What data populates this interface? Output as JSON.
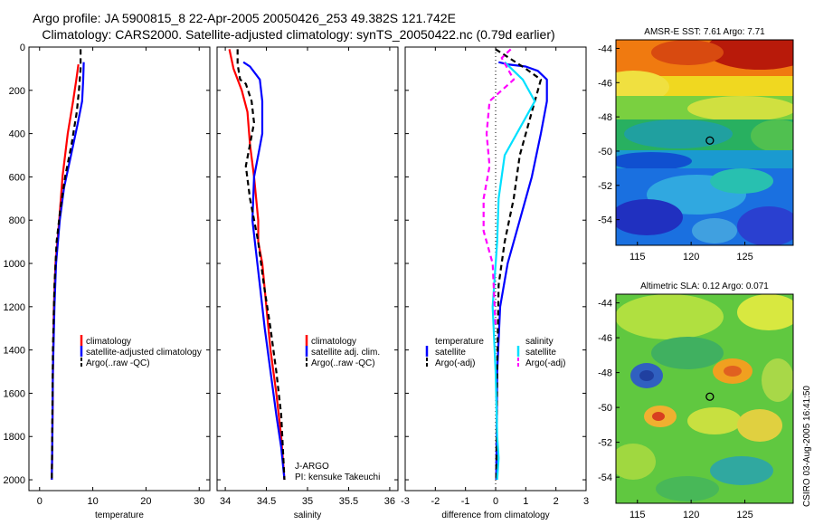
{
  "page": {
    "title_line1": "Argo profile: JA 5900815_8 22-Apr-2005 20050426_253 49.382S 121.742E",
    "title_line2": "Climatology: CARS2000. Satellite-adjusted climatology: synTS_20050422.nc (0.79d earlier)",
    "credit": "CSIRO 03-Aug-2005 16:41:50"
  },
  "colors": {
    "red": "#ff0000",
    "blue": "#0000ff",
    "black": "#000000",
    "cyan": "#00e0ff",
    "magenta": "#ff00ff"
  },
  "chart_data": [
    {
      "type": "line",
      "xlabel": "temperature",
      "xlim": [
        -2,
        32
      ],
      "ylim": [
        2050,
        0
      ],
      "xticks": [
        "0",
        "10",
        "20",
        "30"
      ],
      "xtick_values": [
        0,
        10,
        20,
        30
      ],
      "yticks": [
        "0",
        "200",
        "400",
        "600",
        "800",
        "1000",
        "1200",
        "1400",
        "1600",
        "1800",
        "2000"
      ],
      "ytick_values": [
        0,
        200,
        400,
        600,
        800,
        1000,
        1200,
        1400,
        1600,
        1800,
        2000
      ],
      "legend": [
        "climatology",
        "satellite-adjusted climatology",
        "Argo(..raw -QC)"
      ],
      "series": [
        {
          "name": "climatology",
          "color": "red",
          "dash": "solid",
          "x": [
            7.3,
            6.9,
            6.3,
            5.3,
            4.3,
            3.7,
            3.0,
            2.7,
            2.5,
            2.4,
            2.3
          ],
          "y": [
            80,
            150,
            250,
            400,
            600,
            800,
            1000,
            1200,
            1500,
            1800,
            2000
          ]
        },
        {
          "name": "satellite-adjusted climatology",
          "color": "blue",
          "dash": "solid",
          "x": [
            8.3,
            8.2,
            8.0,
            7.2,
            5.9,
            4.6,
            3.8,
            3.1,
            2.8,
            2.5,
            2.4,
            2.3
          ],
          "y": [
            70,
            150,
            250,
            350,
            500,
            650,
            800,
            1000,
            1200,
            1500,
            1800,
            2000
          ]
        },
        {
          "name": "Argo(..raw -QC)",
          "color": "black",
          "dash": "dashed",
          "x": [
            7.7,
            7.7,
            7.4,
            7.0,
            6.0,
            4.8,
            3.9,
            3.2,
            2.8,
            2.5,
            2.4,
            2.3
          ],
          "y": [
            10,
            100,
            200,
            300,
            450,
            600,
            750,
            900,
            1100,
            1400,
            1700,
            2000
          ]
        }
      ]
    },
    {
      "type": "line",
      "xlabel": "salinity",
      "xlim": [
        33.9,
        36.1
      ],
      "ylim": [
        2050,
        0
      ],
      "xticks": [
        "34",
        "34.5",
        "35",
        "35.5",
        "36"
      ],
      "xtick_values": [
        34,
        34.5,
        35,
        35.5,
        36
      ],
      "legend": [
        "climatology",
        "satellite adj. clim.",
        "Argo(..raw -QC)"
      ],
      "annotations": [
        "J-ARGO",
        "PI: kensuke Takeuchi"
      ],
      "series": [
        {
          "name": "climatology",
          "color": "red",
          "dash": "solid",
          "x": [
            34.05,
            34.1,
            34.2,
            34.27,
            34.3,
            34.35,
            34.4,
            34.4,
            34.45,
            34.5,
            34.55,
            34.62,
            34.68,
            34.72
          ],
          "y": [
            10,
            100,
            200,
            300,
            450,
            600,
            800,
            900,
            1000,
            1200,
            1400,
            1600,
            1800,
            2000
          ]
        },
        {
          "name": "satellite adj. clim.",
          "color": "blue",
          "dash": "solid",
          "x": [
            34.22,
            34.3,
            34.42,
            34.45,
            34.45,
            34.4,
            34.35,
            34.33,
            34.36,
            34.42,
            34.48,
            34.55,
            34.62,
            34.68,
            34.72
          ],
          "y": [
            70,
            90,
            150,
            250,
            400,
            500,
            600,
            800,
            900,
            1100,
            1300,
            1500,
            1700,
            1850,
            2000
          ]
        },
        {
          "name": "Argo(..raw -QC)",
          "color": "black",
          "dash": "dashed",
          "x": [
            34.15,
            34.15,
            34.18,
            34.25,
            34.32,
            34.35,
            34.3,
            34.25,
            34.3,
            34.4,
            34.47,
            34.55,
            34.62,
            34.68,
            34.72
          ],
          "y": [
            10,
            80,
            150,
            170,
            250,
            350,
            450,
            550,
            700,
            900,
            1100,
            1300,
            1500,
            1700,
            2000
          ]
        }
      ]
    },
    {
      "type": "line",
      "xlabel": "difference from climatology",
      "xlim": [
        -3,
        3
      ],
      "ylim": [
        2050,
        0
      ],
      "xticks": [
        "-3",
        "-2",
        "-1",
        "0",
        "1",
        "2",
        "3"
      ],
      "xtick_values": [
        -3,
        -2,
        -1,
        0,
        1,
        2,
        3
      ],
      "legend": [
        "temperature",
        "satellite",
        "Argo(-adj)",
        "salinity",
        "satellite",
        "Argo(-adj)"
      ],
      "series": [
        {
          "name": "temperature satellite",
          "color": "blue",
          "dash": "solid",
          "x": [
            0.1,
            0.4,
            1.0,
            1.4,
            1.7,
            1.7,
            1.5,
            1.2,
            0.8,
            0.4,
            0.15,
            0.05,
            0.02
          ],
          "y": [
            70,
            80,
            90,
            110,
            150,
            250,
            400,
            600,
            800,
            1000,
            1200,
            1500,
            2000
          ]
        },
        {
          "name": "temperature Argo(-adj)",
          "color": "black",
          "dash": "dashed",
          "x": [
            0.0,
            1.0,
            1.5,
            1.4,
            1.2,
            0.8,
            0.6,
            0.3,
            0.1,
            0.05,
            0.02
          ],
          "y": [
            10,
            100,
            150,
            200,
            300,
            500,
            700,
            900,
            1100,
            1500,
            2000
          ]
        },
        {
          "name": "salinity satellite",
          "color": "cyan",
          "dash": "solid",
          "x": [
            0.3,
            0.9,
            1.3,
            0.9,
            0.3,
            0.1,
            0.05,
            -0.1,
            0.0,
            0.05,
            0.1,
            0.05
          ],
          "y": [
            70,
            150,
            250,
            350,
            500,
            700,
            900,
            1200,
            1500,
            1800,
            1900,
            2000
          ]
        },
        {
          "name": "salinity Argo(-adj)",
          "color": "magenta",
          "dash": "dashed",
          "x": [
            0.5,
            0.2,
            0.6,
            -0.2,
            -0.3,
            -0.2,
            -0.4,
            -0.4,
            -0.1,
            0.0
          ],
          "y": [
            10,
            50,
            150,
            250,
            400,
            550,
            700,
            850,
            1000,
            1300
          ]
        }
      ]
    },
    {
      "type": "heatmap",
      "title": "AMSR-E SST: 7.61 Argo: 7.71",
      "xlim": [
        113,
        129.5
      ],
      "ylim": [
        -55.5,
        -43.5
      ],
      "xticks": [
        "115",
        "120",
        "125"
      ],
      "xtick_values": [
        115,
        120,
        125
      ],
      "yticks": [
        "-44",
        "-46",
        "-48",
        "-50",
        "-52",
        "-54"
      ],
      "ytick_values": [
        -44,
        -46,
        -48,
        -50,
        -52,
        -54
      ],
      "marker": {
        "lon": 121.742,
        "lat": -49.382
      }
    },
    {
      "type": "heatmap",
      "title": "Altimetric SLA: 0.12 Argo: 0.071",
      "xlim": [
        113,
        129.5
      ],
      "ylim": [
        -55.5,
        -43.5
      ],
      "xticks": [
        "115",
        "120",
        "125"
      ],
      "xtick_values": [
        115,
        120,
        125
      ],
      "yticks": [
        "-44",
        "-46",
        "-48",
        "-50",
        "-52",
        "-54"
      ],
      "ytick_values": [
        -44,
        -46,
        -48,
        -50,
        -52,
        -54
      ],
      "marker": {
        "lon": 121.742,
        "lat": -49.382
      }
    }
  ]
}
